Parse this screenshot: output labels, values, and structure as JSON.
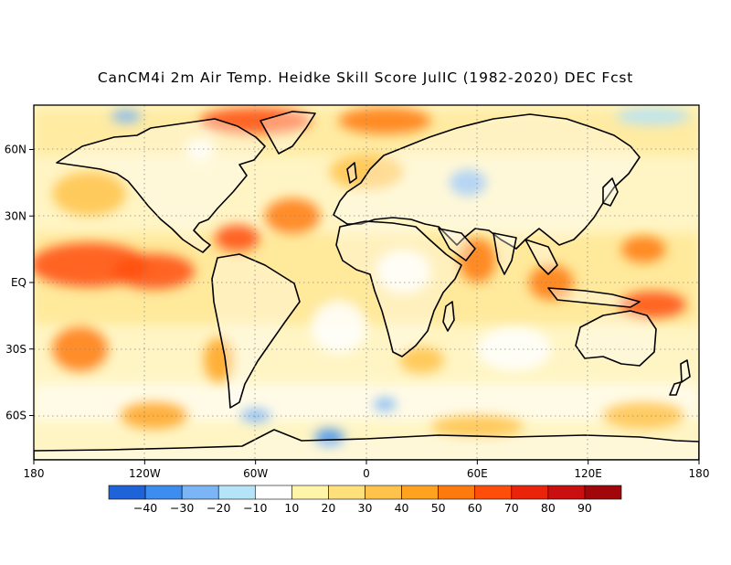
{
  "title": "CanCM4i 2m Air Temp. Heidke Skill Score JulIC (1982-2020) DEC Fcst",
  "map": {
    "x_ticks": [
      {
        "lon": -180,
        "label": "180"
      },
      {
        "lon": -120,
        "label": "120W"
      },
      {
        "lon": -60,
        "label": "60W"
      },
      {
        "lon": 0,
        "label": "0"
      },
      {
        "lon": 60,
        "label": "60E"
      },
      {
        "lon": 120,
        "label": "120E"
      },
      {
        "lon": 180,
        "label": "180"
      }
    ],
    "y_ticks": [
      {
        "lat": 60,
        "label": "60N"
      },
      {
        "lat": 30,
        "label": "30N"
      },
      {
        "lat": 0,
        "label": "EQ"
      },
      {
        "lat": -30,
        "label": "30S"
      },
      {
        "lat": -60,
        "label": "60S"
      }
    ],
    "lon_range": [
      -180,
      180
    ],
    "lat_range": [
      -80,
      80
    ]
  },
  "colorbar": {
    "colors": [
      "#1f63d9",
      "#3d8df0",
      "#7bb5f5",
      "#b5e3f8",
      "#ffffff",
      "#fff5a8",
      "#ffe07a",
      "#ffc24a",
      "#ffa21f",
      "#ff7a0d",
      "#ff4e0a",
      "#ea240a",
      "#c90f0f",
      "#a0060a"
    ],
    "labels": [
      "-40",
      "-30",
      "-20",
      "-10",
      "10",
      "20",
      "30",
      "40",
      "50",
      "60",
      "70",
      "80",
      "90"
    ]
  },
  "anomaly_regions": [
    {
      "lon": -150,
      "lat": 8,
      "rx": 32,
      "ry": 10,
      "level": 6
    },
    {
      "lon": -115,
      "lat": 5,
      "rx": 22,
      "ry": 8,
      "level": 6
    },
    {
      "lon": -70,
      "lat": 20,
      "rx": 12,
      "ry": 6,
      "level": 6
    },
    {
      "lon": -60,
      "lat": 73,
      "rx": 30,
      "ry": 6,
      "level": 6
    },
    {
      "lon": 10,
      "lat": 73,
      "rx": 25,
      "ry": 6,
      "level": 5
    },
    {
      "lon": 155,
      "lat": -10,
      "rx": 18,
      "ry": 6,
      "level": 6
    },
    {
      "lon": 150,
      "lat": 15,
      "rx": 12,
      "ry": 6,
      "level": 5
    },
    {
      "lon": -40,
      "lat": 30,
      "rx": 15,
      "ry": 8,
      "level": 5
    },
    {
      "lon": 60,
      "lat": 10,
      "rx": 10,
      "ry": 10,
      "level": 5
    },
    {
      "lon": 100,
      "lat": 0,
      "rx": 12,
      "ry": 8,
      "level": 5
    },
    {
      "lon": -155,
      "lat": -30,
      "rx": 15,
      "ry": 10,
      "level": 5
    },
    {
      "lon": -115,
      "lat": -60,
      "rx": 18,
      "ry": 6,
      "level": 4
    },
    {
      "lon": -80,
      "lat": -35,
      "rx": 8,
      "ry": 10,
      "level": 4
    },
    {
      "lon": 30,
      "lat": -35,
      "rx": 12,
      "ry": 6,
      "level": 3
    },
    {
      "lon": 60,
      "lat": -65,
      "rx": 25,
      "ry": 5,
      "level": 3
    },
    {
      "lon": 150,
      "lat": -60,
      "rx": 22,
      "ry": 6,
      "level": 3
    },
    {
      "lon": -150,
      "lat": 40,
      "rx": 20,
      "ry": 10,
      "level": 3
    },
    {
      "lon": 0,
      "lat": 50,
      "rx": 20,
      "ry": 8,
      "level": 3
    },
    {
      "lon": -130,
      "lat": 75,
      "rx": 8,
      "ry": 3,
      "level": -2
    },
    {
      "lon": 55,
      "lat": 45,
      "rx": 10,
      "ry": 6,
      "level": -2
    },
    {
      "lon": -20,
      "lat": -70,
      "rx": 8,
      "ry": 4,
      "level": -3
    },
    {
      "lon": -60,
      "lat": -60,
      "rx": 8,
      "ry": 3,
      "level": -2
    },
    {
      "lon": 10,
      "lat": -55,
      "rx": 6,
      "ry": 3,
      "level": -2
    },
    {
      "lon": 155,
      "lat": 75,
      "rx": 20,
      "ry": 4,
      "level": -1
    },
    {
      "lon": -90,
      "lat": 60,
      "rx": 8,
      "ry": 5,
      "level": 0
    },
    {
      "lon": 20,
      "lat": 5,
      "rx": 15,
      "ry": 10,
      "level": 0
    },
    {
      "lon": -15,
      "lat": -20,
      "rx": 15,
      "ry": 12,
      "level": 0
    },
    {
      "lon": 80,
      "lat": -30,
      "rx": 20,
      "ry": 10,
      "level": 0
    }
  ]
}
